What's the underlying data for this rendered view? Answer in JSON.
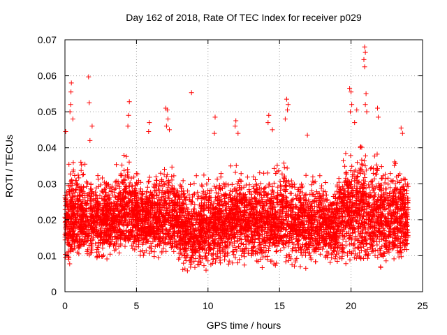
{
  "chart_data": {
    "type": "scatter",
    "title": "Day 162 of 2018, Rate Of TEC Index for receiver p029",
    "xlabel": "GPS time / hours",
    "ylabel": "ROTI / TECUs",
    "xlim": [
      0,
      25
    ],
    "ylim": [
      0,
      0.07
    ],
    "xticks": [
      "0",
      "5",
      "10",
      "15",
      "20",
      "25"
    ],
    "yticks": [
      "0",
      "0.01",
      "0.02",
      "0.03",
      "0.04",
      "0.05",
      "0.06",
      "0.07"
    ],
    "grid": true,
    "marker": "+",
    "color": "#ff0000",
    "x_range_of_data": [
      0,
      24
    ],
    "series": [
      {
        "band_profile": {
          "hours": [
            0,
            0.5,
            1,
            1.5,
            2,
            2.5,
            3,
            3.5,
            4,
            4.5,
            5,
            5.5,
            6,
            6.5,
            7,
            7.5,
            8,
            8.5,
            9,
            9.5,
            10,
            10.5,
            11,
            11.5,
            12,
            12.5,
            13,
            13.5,
            14,
            14.5,
            15,
            15.5,
            16,
            16.5,
            17,
            17.5,
            18,
            18.5,
            19,
            19.5,
            20,
            20.5,
            21,
            21.5,
            22,
            22.5,
            23,
            23.5,
            24
          ],
          "low": [
            0.006,
            0.006,
            0.007,
            0.006,
            0.007,
            0.007,
            0.007,
            0.008,
            0.008,
            0.007,
            0.008,
            0.008,
            0.008,
            0.008,
            0.008,
            0.008,
            0.007,
            0.004,
            0.004,
            0.005,
            0.005,
            0.006,
            0.006,
            0.006,
            0.006,
            0.006,
            0.006,
            0.006,
            0.006,
            0.006,
            0.006,
            0.006,
            0.006,
            0.006,
            0.006,
            0.006,
            0.006,
            0.006,
            0.006,
            0.006,
            0.005,
            0.004,
            0.005,
            0.005,
            0.005,
            0.005,
            0.006,
            0.006,
            0.007
          ],
          "high": [
            0.035,
            0.04,
            0.038,
            0.037,
            0.035,
            0.035,
            0.036,
            0.035,
            0.04,
            0.042,
            0.037,
            0.035,
            0.035,
            0.035,
            0.038,
            0.04,
            0.034,
            0.032,
            0.034,
            0.034,
            0.035,
            0.035,
            0.037,
            0.035,
            0.038,
            0.037,
            0.036,
            0.036,
            0.036,
            0.037,
            0.04,
            0.04,
            0.037,
            0.035,
            0.034,
            0.034,
            0.034,
            0.034,
            0.036,
            0.042,
            0.042,
            0.045,
            0.044,
            0.042,
            0.04,
            0.04,
            0.04,
            0.039,
            0.036
          ]
        },
        "outliers": [
          [
            0.05,
            0.0445
          ],
          [
            0.45,
            0.058
          ],
          [
            0.42,
            0.0555
          ],
          [
            0.4,
            0.052
          ],
          [
            0.35,
            0.05
          ],
          [
            0.55,
            0.048
          ],
          [
            1.65,
            0.0597
          ],
          [
            1.7,
            0.0525
          ],
          [
            1.9,
            0.046
          ],
          [
            1.75,
            0.042
          ],
          [
            4.5,
            0.0528
          ],
          [
            4.45,
            0.049
          ],
          [
            4.4,
            0.046
          ],
          [
            5.9,
            0.047
          ],
          [
            5.85,
            0.0445
          ],
          [
            7.05,
            0.051
          ],
          [
            7.15,
            0.0505
          ],
          [
            7.2,
            0.048
          ],
          [
            7.3,
            0.045
          ],
          [
            7.1,
            0.046
          ],
          [
            8.85,
            0.0553
          ],
          [
            10.45,
            0.044
          ],
          [
            10.5,
            0.0485
          ],
          [
            11.95,
            0.0475
          ],
          [
            11.9,
            0.046
          ],
          [
            12.1,
            0.044
          ],
          [
            14.25,
            0.049
          ],
          [
            14.2,
            0.047
          ],
          [
            14.5,
            0.045
          ],
          [
            15.5,
            0.0535
          ],
          [
            15.6,
            0.052
          ],
          [
            15.55,
            0.0505
          ],
          [
            15.4,
            0.048
          ],
          [
            16.95,
            0.0435
          ],
          [
            19.9,
            0.0565
          ],
          [
            20.0,
            0.0555
          ],
          [
            20.05,
            0.052
          ],
          [
            19.95,
            0.05
          ],
          [
            20.4,
            0.0505
          ],
          [
            20.25,
            0.047
          ],
          [
            20.95,
            0.068
          ],
          [
            21.0,
            0.0665
          ],
          [
            20.9,
            0.0645
          ],
          [
            20.95,
            0.0625
          ],
          [
            21.05,
            0.055
          ],
          [
            21.0,
            0.052
          ],
          [
            21.1,
            0.05
          ],
          [
            21.85,
            0.051
          ],
          [
            21.9,
            0.0485
          ],
          [
            23.5,
            0.0455
          ],
          [
            23.6,
            0.044
          ]
        ]
      }
    ]
  }
}
